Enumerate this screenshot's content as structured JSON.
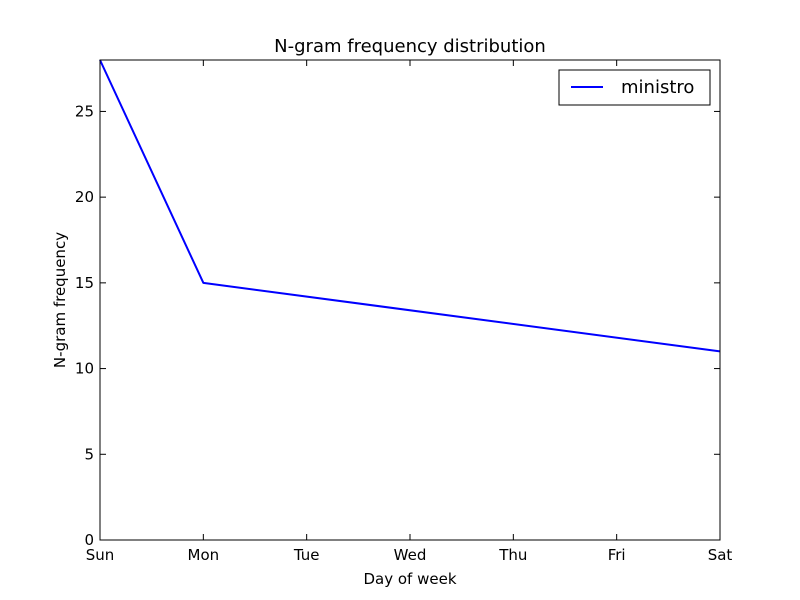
{
  "chart_data": {
    "type": "line",
    "title": "N-gram frequency distribution",
    "xlabel": "Day of week",
    "ylabel": "N-gram frequency",
    "categories": [
      "Sun",
      "Mon",
      "Tue",
      "Wed",
      "Thu",
      "Fri",
      "Sat"
    ],
    "series": [
      {
        "name": "ministro",
        "color": "#0000ff",
        "x": [
          "Sun",
          "Mon",
          "Sat"
        ],
        "values": [
          28,
          15,
          11
        ]
      }
    ],
    "ylim": [
      0,
      28
    ],
    "yticks": [
      0,
      5,
      10,
      15,
      20,
      25
    ],
    "grid": false,
    "legend_position": "top-right"
  }
}
